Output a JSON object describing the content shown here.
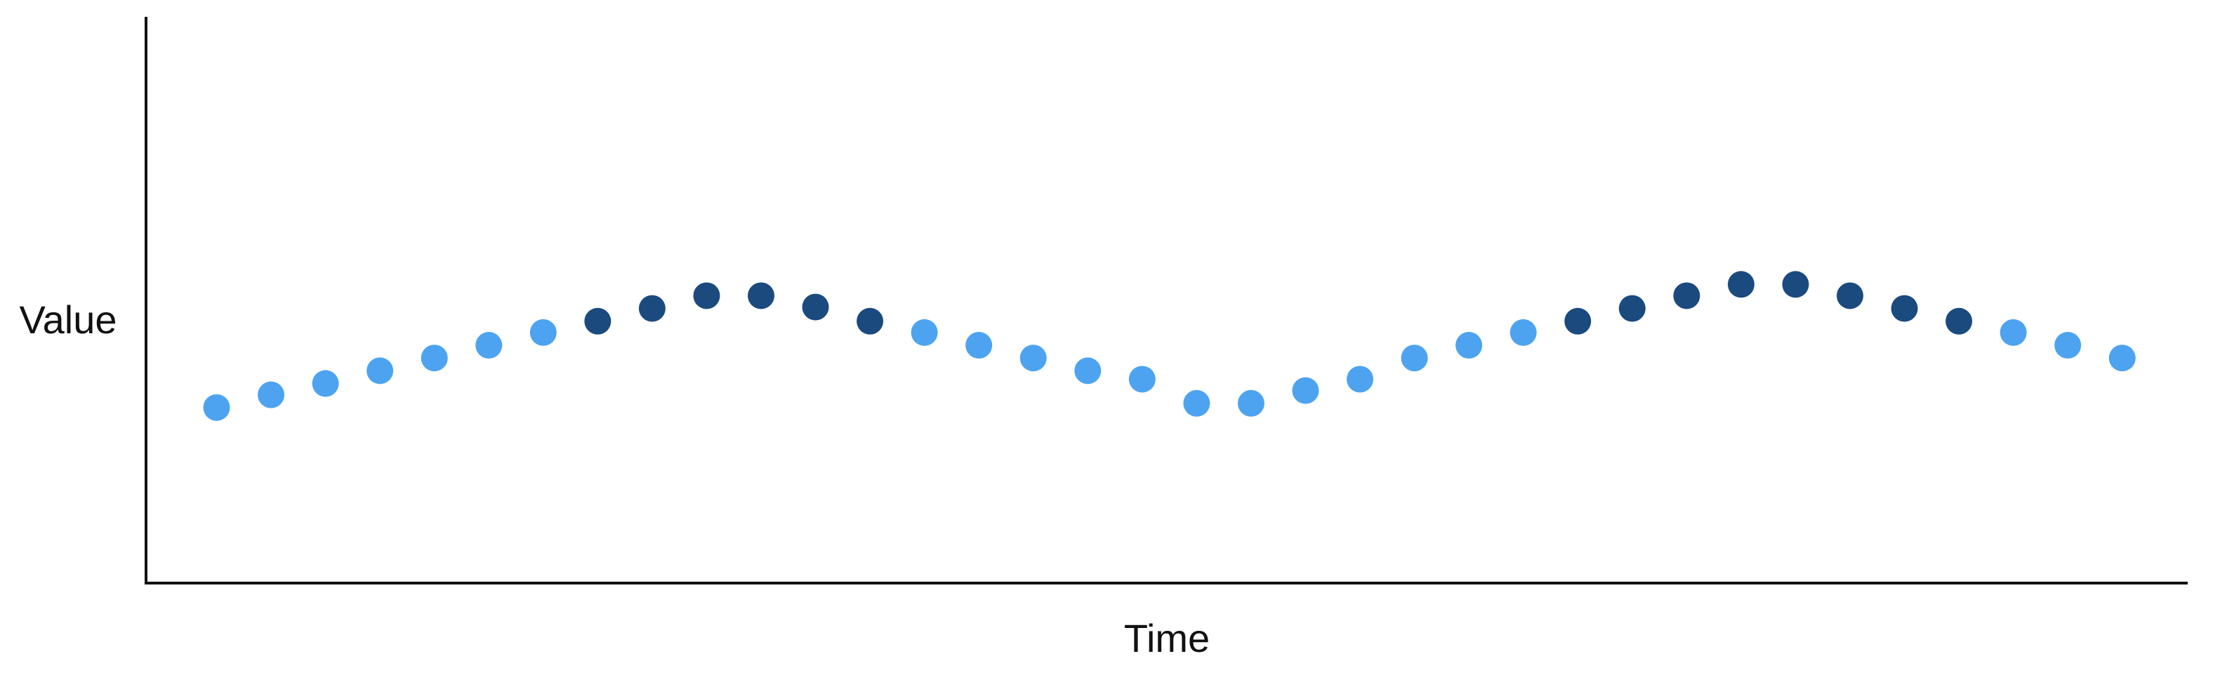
{
  "chart_data": {
    "type": "scatter",
    "x_label": "Time",
    "y_label": "Value",
    "ylim": [
      0,
      100
    ],
    "categories": [
      null,
      null,
      null,
      null,
      null,
      null,
      null,
      null,
      null,
      null,
      null,
      null,
      null,
      null,
      null,
      null,
      null,
      null,
      null,
      null,
      null,
      null,
      null,
      null,
      null,
      null,
      null,
      null,
      null,
      null,
      null,
      null,
      null,
      null,
      null,
      null
    ],
    "series": [
      {
        "color": "#4da3f0",
        "values": [
          31,
          33.25,
          35.25,
          37.5,
          39.75,
          42,
          44.25,
          null,
          null,
          null,
          null,
          null,
          null,
          44.25,
          42,
          39.75,
          37.5,
          36,
          31.75,
          31.75,
          34,
          36,
          39.75,
          42,
          44.25,
          null,
          null,
          null,
          null,
          null,
          null,
          null,
          null,
          44.25,
          42,
          39.75
        ]
      },
      {
        "color": "#1b4a7f",
        "values": [
          null,
          null,
          null,
          null,
          null,
          null,
          null,
          46.25,
          48.5,
          50.75,
          50.75,
          48.75,
          46.25,
          null,
          null,
          null,
          null,
          null,
          null,
          null,
          null,
          null,
          null,
          null,
          null,
          46.25,
          48.5,
          50.75,
          52.75,
          52.75,
          50.75,
          48.5,
          46.25,
          null,
          null,
          null
        ]
      }
    ]
  }
}
